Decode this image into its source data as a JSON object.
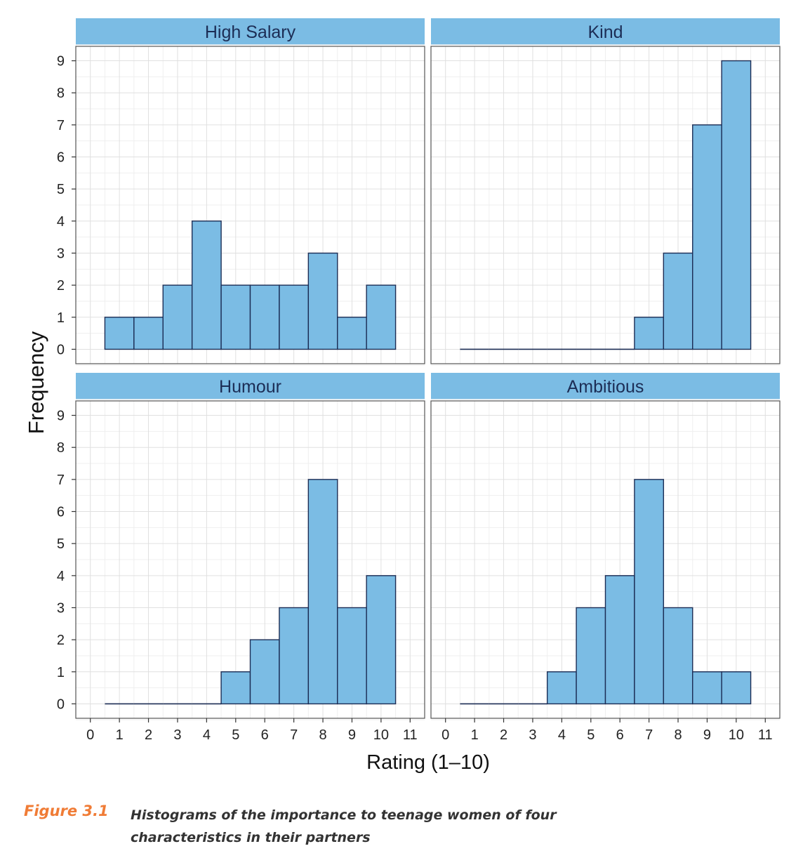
{
  "chart_data": {
    "type": "bar",
    "layout": "2x2 facet grid of histograms",
    "xlabel": "Rating (1–10)",
    "ylabel": "Frequency",
    "x_ticks": [
      "0",
      "1",
      "2",
      "3",
      "4",
      "5",
      "6",
      "7",
      "8",
      "9",
      "10",
      "11"
    ],
    "y_ticks": [
      "0",
      "1",
      "2",
      "3",
      "4",
      "5",
      "6",
      "7",
      "8",
      "9"
    ],
    "xlim": [
      -0.5,
      11.5
    ],
    "ylim": [
      -0.45,
      9.45
    ],
    "grid": true,
    "categories": [
      1,
      2,
      3,
      4,
      5,
      6,
      7,
      8,
      9,
      10
    ],
    "series": [
      {
        "name": "High Salary",
        "values": [
          1,
          1,
          2,
          4,
          2,
          2,
          2,
          3,
          1,
          2
        ]
      },
      {
        "name": "Kind",
        "values": [
          0,
          0,
          0,
          0,
          0,
          0,
          1,
          3,
          7,
          9
        ]
      },
      {
        "name": "Humour",
        "values": [
          0,
          0,
          0,
          0,
          1,
          2,
          3,
          7,
          3,
          4
        ]
      },
      {
        "name": "Ambitious",
        "values": [
          0,
          0,
          0,
          1,
          3,
          4,
          7,
          3,
          1,
          1
        ]
      }
    ],
    "colors": {
      "bar_fill": "#7bbce4",
      "bar_stroke": "#1c2d55",
      "strip_fill": "#7bbce4",
      "strip_text": "#1c2d55",
      "grid": "#e0e0e0",
      "panel_border": "#555555"
    }
  },
  "caption": {
    "label": "Figure 3.1",
    "text": "Histograms of the importance to teenage women of four characteristics in their partners"
  }
}
